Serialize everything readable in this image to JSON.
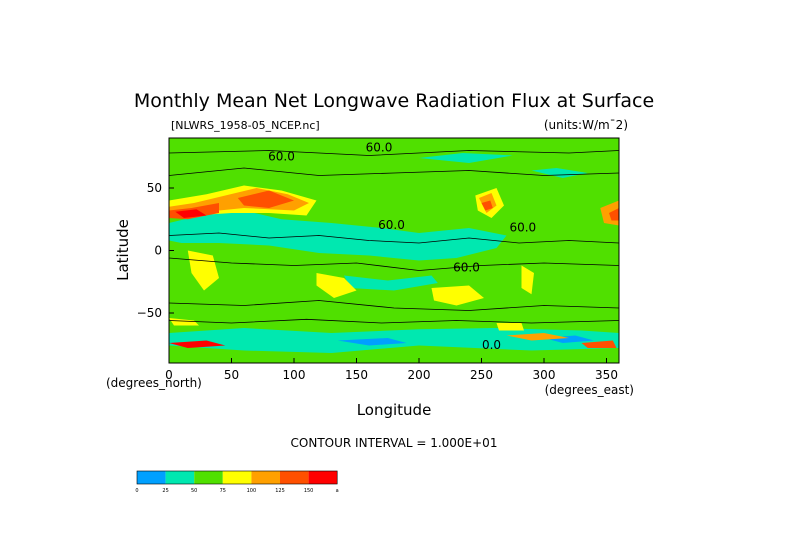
{
  "chart_data": {
    "type": "heatmap",
    "title": "Monthly Mean Net Longwave Radiation Flux at Surface",
    "dataset": "[NLWRS_1958-05_NCEP.nc]",
    "units": "(units:W/m¯2)",
    "xlabel": "Longitude",
    "ylabel": "Latitude",
    "x_unit": "(degrees_east)",
    "y_unit": "(degrees_north)",
    "xlim": [
      0,
      360
    ],
    "ylim": [
      -90,
      90
    ],
    "x_ticks": [
      0,
      50,
      100,
      150,
      200,
      250,
      300,
      350
    ],
    "y_ticks": [
      -50,
      0,
      50
    ],
    "contour_interval": "CONTOUR INTERVAL = 1.000E+01",
    "contour_labels": [
      {
        "text": "60.0",
        "lon": 90,
        "lat": 75
      },
      {
        "text": "60.0",
        "lon": 168,
        "lat": 82
      },
      {
        "text": "60.0",
        "lon": 178,
        "lat": 20
      },
      {
        "text": "60.0",
        "lon": 283,
        "lat": 18
      },
      {
        "text": "60.0",
        "lon": 238,
        "lat": -14
      },
      {
        "text": "0.0",
        "lon": 258,
        "lat": -76
      }
    ],
    "colorbar": {
      "levels": [
        "0",
        "25",
        "50",
        "75",
        "100",
        "125",
        "150",
        "a"
      ],
      "colors": [
        "#00a0ff",
        "#00e8b0",
        "#50e000",
        "#ffff00",
        "#ffa000",
        "#ff5000",
        "#ff0000"
      ]
    }
  }
}
